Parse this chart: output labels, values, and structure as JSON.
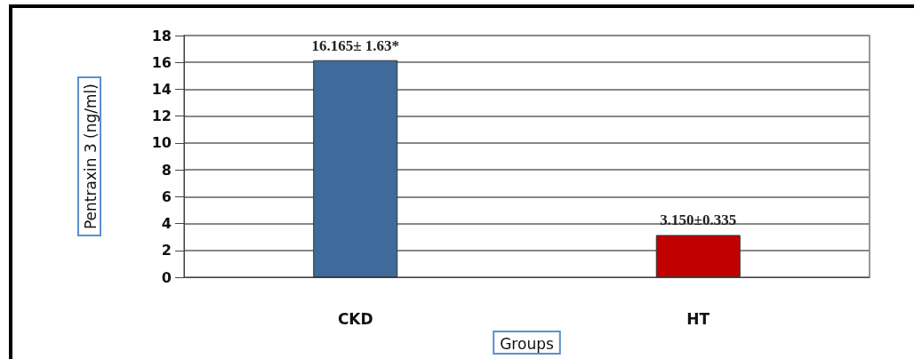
{
  "chart_data": {
    "type": "bar",
    "xlabel": "Groups",
    "ylabel": "Pentraxin 3 (ng/ml)",
    "categories": [
      "CKD",
      "HT"
    ],
    "values": [
      16.165,
      3.15
    ],
    "colors": [
      "#3f6a9c",
      "#c00000"
    ],
    "value_labels": [
      "16.165± 1.63*",
      "3.150±0.335"
    ],
    "ylim": [
      0,
      18
    ],
    "yticks": [
      0,
      2,
      4,
      6,
      8,
      10,
      12,
      14,
      16,
      18
    ],
    "grid": "y"
  }
}
